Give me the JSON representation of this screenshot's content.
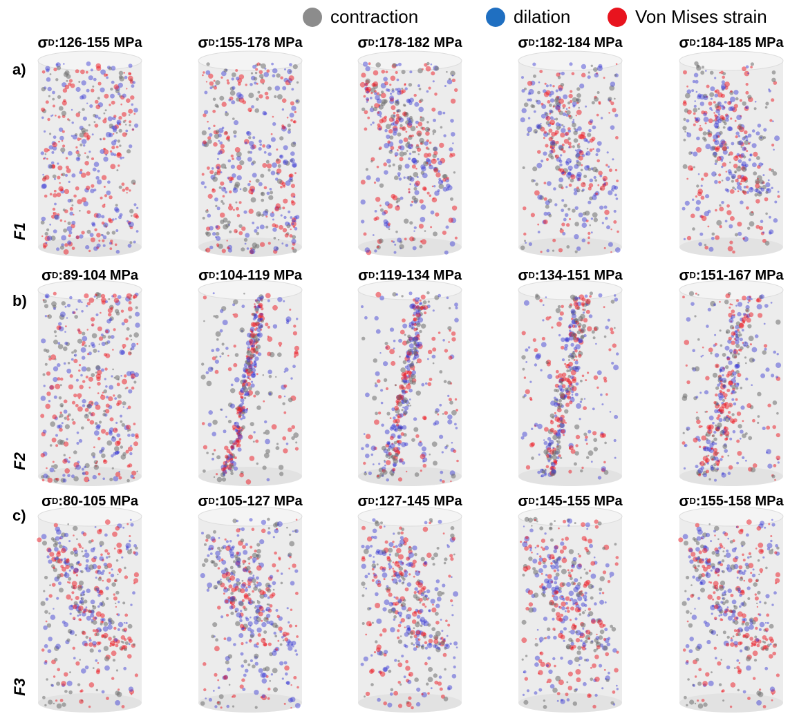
{
  "legend": [
    {
      "label": "contraction",
      "color": "#8c8c8c"
    },
    {
      "label": "dilation",
      "color": "#1f6fc1"
    },
    {
      "label": "Von Mises strain",
      "color": "#e8141e"
    }
  ],
  "rows": [
    {
      "label": "a)",
      "sample": "F1",
      "panels": [
        {
          "symbol": "σ",
          "subscript": "D",
          "text": ":126-155 MPa"
        },
        {
          "symbol": "σ",
          "subscript": "D",
          "text": ":155-178 MPa"
        },
        {
          "symbol": "σ",
          "subscript": "D",
          "text": ":178-182 MPa"
        },
        {
          "symbol": "σ",
          "subscript": "D",
          "text": ":182-184 MPa"
        },
        {
          "symbol": "σ",
          "subscript": "D",
          "text": ":184-185 MPa"
        }
      ]
    },
    {
      "label": "b)",
      "sample": "F2",
      "panels": [
        {
          "symbol": "σ",
          "subscript": "D",
          "text": ":89-104 MPa"
        },
        {
          "symbol": "σ",
          "subscript": "D",
          "text": ":104-119 MPa"
        },
        {
          "symbol": "σ",
          "subscript": "D",
          "text": ":119-134 MPa"
        },
        {
          "symbol": "σ",
          "subscript": "D",
          "text": ":134-151 MPa"
        },
        {
          "symbol": "σ",
          "subscript": "D",
          "text": ":151-167 MPa"
        }
      ]
    },
    {
      "label": "c)",
      "sample": "F3",
      "panels": [
        {
          "symbol": "σ",
          "subscript": "D",
          "text": ":80-105 MPa"
        },
        {
          "symbol": "σ",
          "subscript": "D",
          "text": ":105-127 MPa"
        },
        {
          "symbol": "σ",
          "subscript": "D",
          "text": ":127-145 MPa"
        },
        {
          "symbol": "σ",
          "subscript": "D",
          "text": ":145-155 MPa"
        },
        {
          "symbol": "σ",
          "subscript": "D",
          "text": ":155-158 MPa"
        }
      ]
    }
  ]
}
